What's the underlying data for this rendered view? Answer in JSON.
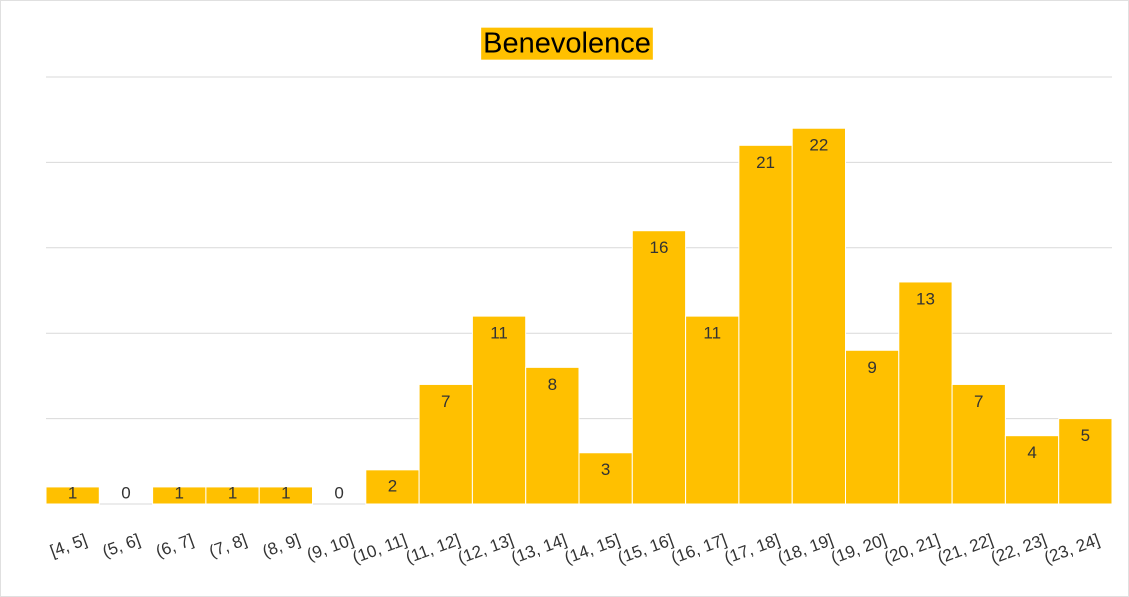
{
  "chart_data": {
    "type": "bar",
    "title": "Benevolence",
    "categories": [
      "[4, 5]",
      "(5, 6]",
      "(6, 7]",
      "(7, 8]",
      "(8, 9]",
      "(9, 10]",
      "(10, 11]",
      "(11, 12]",
      "(12, 13]",
      "(13, 14]",
      "(14, 15]",
      "(15, 16]",
      "(16, 17]",
      "(17, 18]",
      "(18, 19]",
      "(19, 20]",
      "(20, 21]",
      "(21, 22]",
      "(22, 23]",
      "(23, 24]"
    ],
    "values": [
      1,
      0,
      1,
      1,
      1,
      0,
      2,
      7,
      11,
      8,
      3,
      16,
      11,
      21,
      22,
      9,
      13,
      7,
      4,
      5
    ],
    "color": "#ffc000",
    "title_background": "#ffc000",
    "ylim": [
      0,
      25
    ],
    "yticks": [
      0,
      5,
      10,
      15,
      20,
      25
    ],
    "grid": true
  }
}
